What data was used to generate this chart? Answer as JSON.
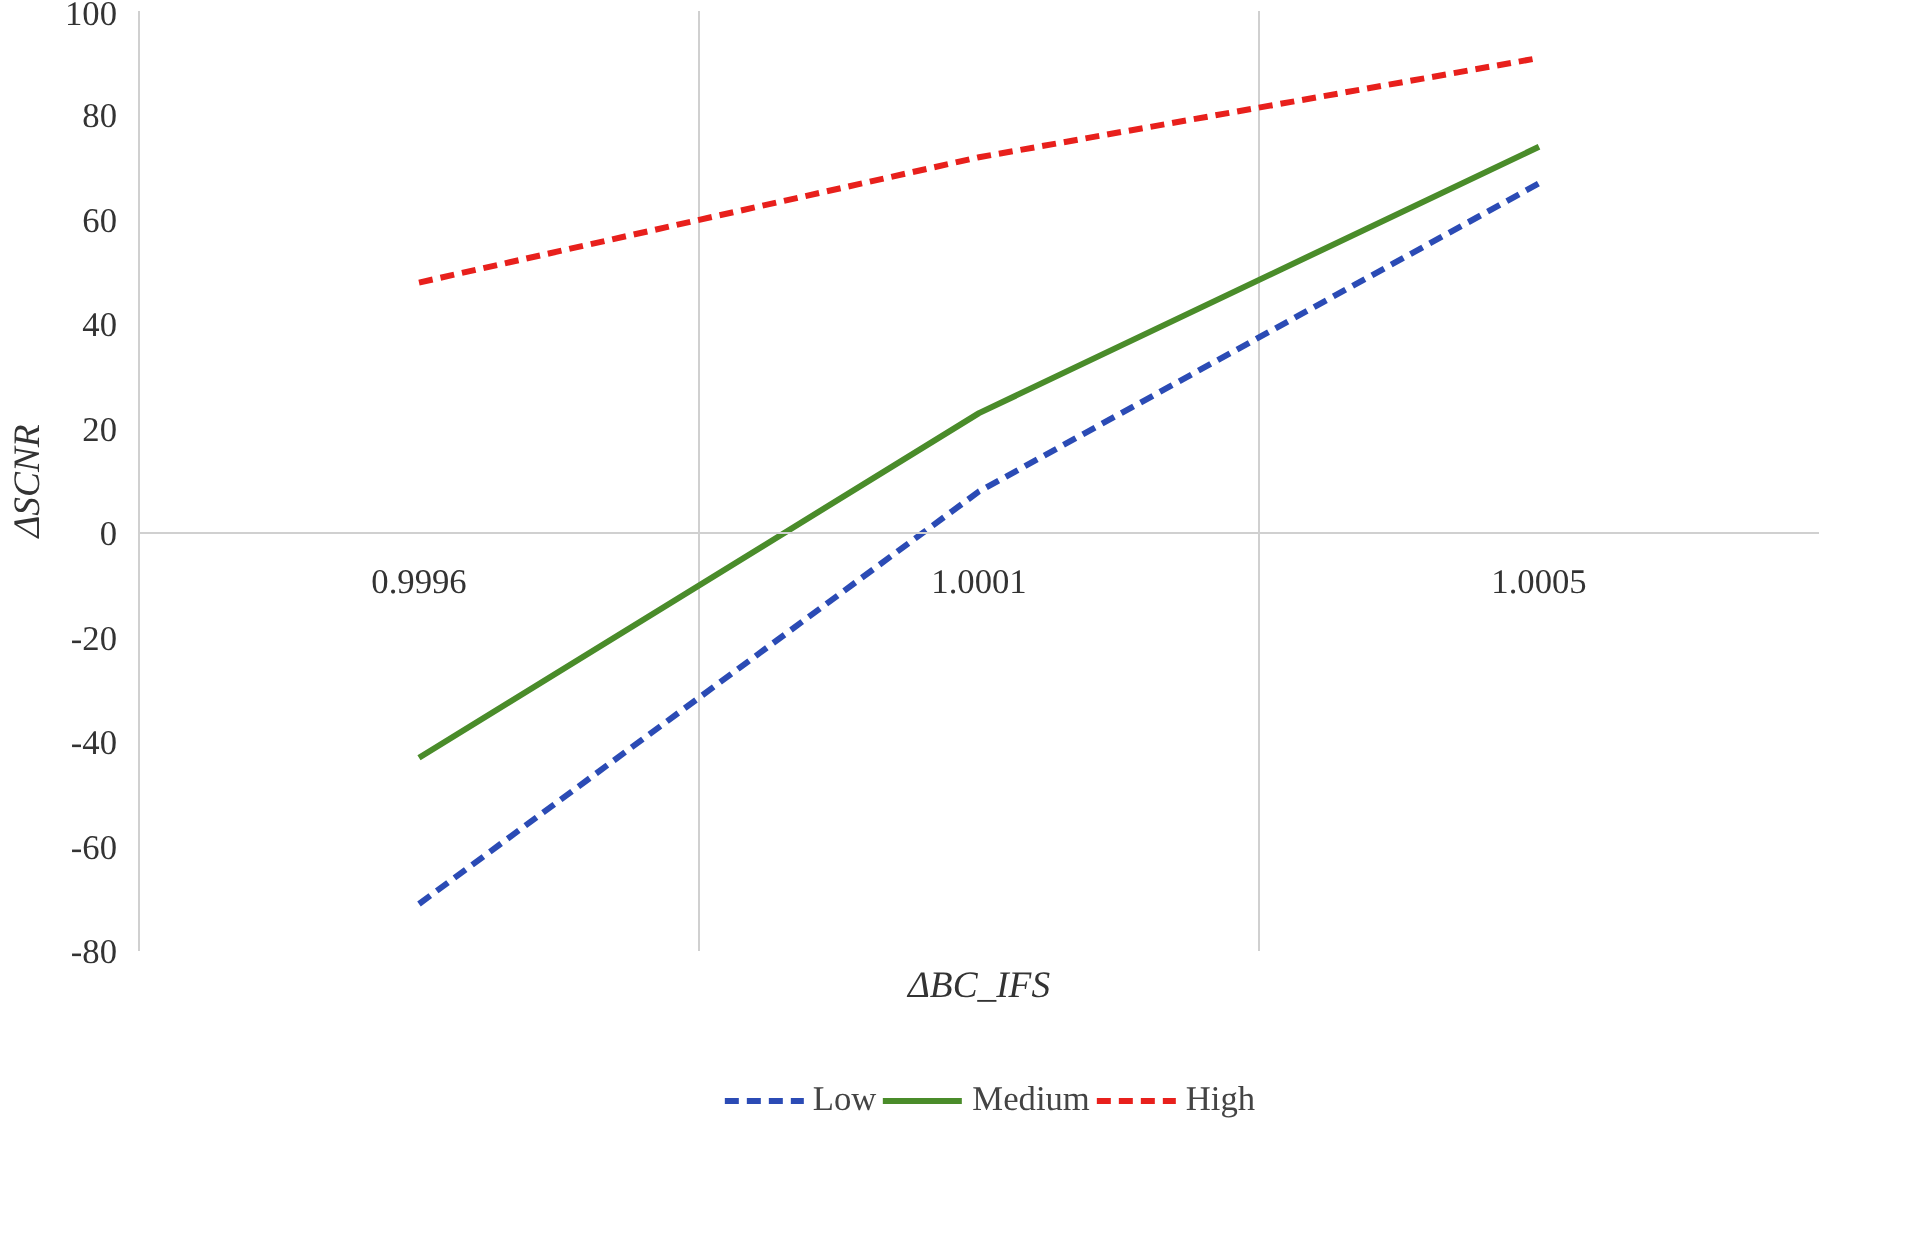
{
  "chart_data": {
    "type": "line",
    "xlabel": "ΔBC_IFS",
    "ylabel": "ΔSCNR",
    "categories": [
      "0.9996",
      "1.0001",
      "1.0005"
    ],
    "series": [
      {
        "name": "Low",
        "color": "#2b4bb5",
        "line_style": "dashed",
        "values": [
          -71,
          8,
          67
        ]
      },
      {
        "name": "Medium",
        "color": "#4a8c2a",
        "line_style": "solid",
        "values": [
          -43,
          23,
          74
        ]
      },
      {
        "name": "High",
        "color": "#e8201c",
        "line_style": "dashed",
        "values": [
          48,
          72,
          91
        ]
      }
    ],
    "ylim": [
      -80,
      100
    ],
    "yticks": [
      -80,
      -60,
      -40,
      -20,
      0,
      20,
      40,
      60,
      80,
      100
    ],
    "grid": "x",
    "legend": "bottom",
    "marker": "none"
  }
}
